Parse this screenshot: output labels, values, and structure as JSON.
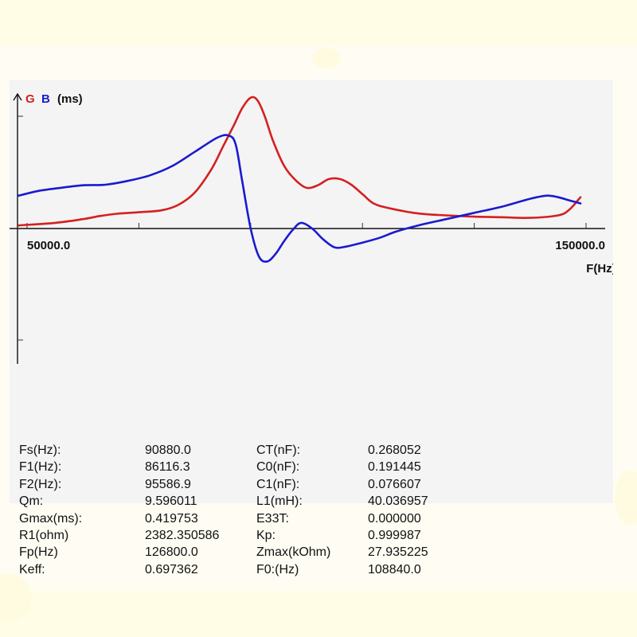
{
  "chart_data": {
    "type": "line",
    "title": "",
    "ylabel_parts": {
      "g": "G",
      "b": "B",
      "unit": "(ms)"
    },
    "xlabel": "F(Hz)",
    "x_tick_labels": [
      "50000.0",
      "150000.0"
    ],
    "xlim": [
      50000,
      150000
    ],
    "ylim": [
      -0.42,
      0.42
    ],
    "grid": false,
    "series": [
      {
        "name": "G",
        "color": "#d42020",
        "x": [
          48500,
          55000,
          60000,
          63000,
          66000,
          70000,
          74000,
          77000,
          80000,
          83000,
          85000,
          87000,
          88500,
          90000,
          91200,
          92500,
          94000,
          96000,
          98000,
          100000,
          102000,
          104000,
          106000,
          108000,
          110000,
          112000,
          115000,
          120000,
          125000,
          130000,
          135000,
          140000,
          145000,
          147000,
          149000
        ],
        "y": [
          0.01,
          0.018,
          0.03,
          0.04,
          0.047,
          0.052,
          0.058,
          0.075,
          0.115,
          0.19,
          0.26,
          0.33,
          0.385,
          0.418,
          0.41,
          0.36,
          0.28,
          0.2,
          0.155,
          0.13,
          0.138,
          0.158,
          0.158,
          0.14,
          0.11,
          0.08,
          0.064,
          0.048,
          0.042,
          0.038,
          0.036,
          0.034,
          0.042,
          0.06,
          0.1
        ]
      },
      {
        "name": "B",
        "color": "#1a1ad0",
        "x": [
          48500,
          52000,
          56000,
          60000,
          64000,
          68000,
          72000,
          76000,
          80000,
          84000,
          86000,
          87300,
          88500,
          90000,
          91500,
          93000,
          94500,
          96000,
          97500,
          99000,
          101000,
          103000,
          105000,
          107000,
          110000,
          113000,
          116000,
          120000,
          125000,
          130000,
          135000,
          140000,
          143000,
          145000,
          147000,
          149000
        ],
        "y": [
          0.105,
          0.12,
          0.13,
          0.138,
          0.14,
          0.152,
          0.17,
          0.2,
          0.245,
          0.29,
          0.297,
          0.27,
          0.15,
          0.0,
          -0.09,
          -0.105,
          -0.08,
          -0.04,
          -0.005,
          0.018,
          0.0,
          -0.035,
          -0.06,
          -0.058,
          -0.045,
          -0.03,
          -0.01,
          0.01,
          0.03,
          0.05,
          0.07,
          0.095,
          0.105,
          0.1,
          0.09,
          0.08
        ]
      }
    ]
  },
  "params": [
    {
      "label": "Fs(Hz):",
      "value": "90880.0",
      "label2": "CT(nF):",
      "value2": "0.268052"
    },
    {
      "label": "F1(Hz):",
      "value": "86116.3",
      "label2": "C0(nF):",
      "value2": "0.191445"
    },
    {
      "label": "F2(Hz):",
      "value": "95586.9",
      "label2": "C1(nF):",
      "value2": "0.076607"
    },
    {
      "label": "Qm:",
      "value": "9.596011",
      "label2": "L1(mH):",
      "value2": "40.036957"
    },
    {
      "label": "Gmax(ms):",
      "value": "0.419753",
      "label2": "E33T:",
      "value2": "0.000000"
    },
    {
      "label": "R1(ohm)",
      "value": "2382.350586",
      "label2": "Kp:",
      "value2": "0.999987"
    },
    {
      "label": "Fp(Hz)",
      "value": "126800.0",
      "label2": "Zmax(kOhm)",
      "value2": "27.935225"
    },
    {
      "label": "Keff:",
      "value": "0.697362",
      "label2": "F0:(Hz)",
      "value2": "108840.0"
    }
  ]
}
